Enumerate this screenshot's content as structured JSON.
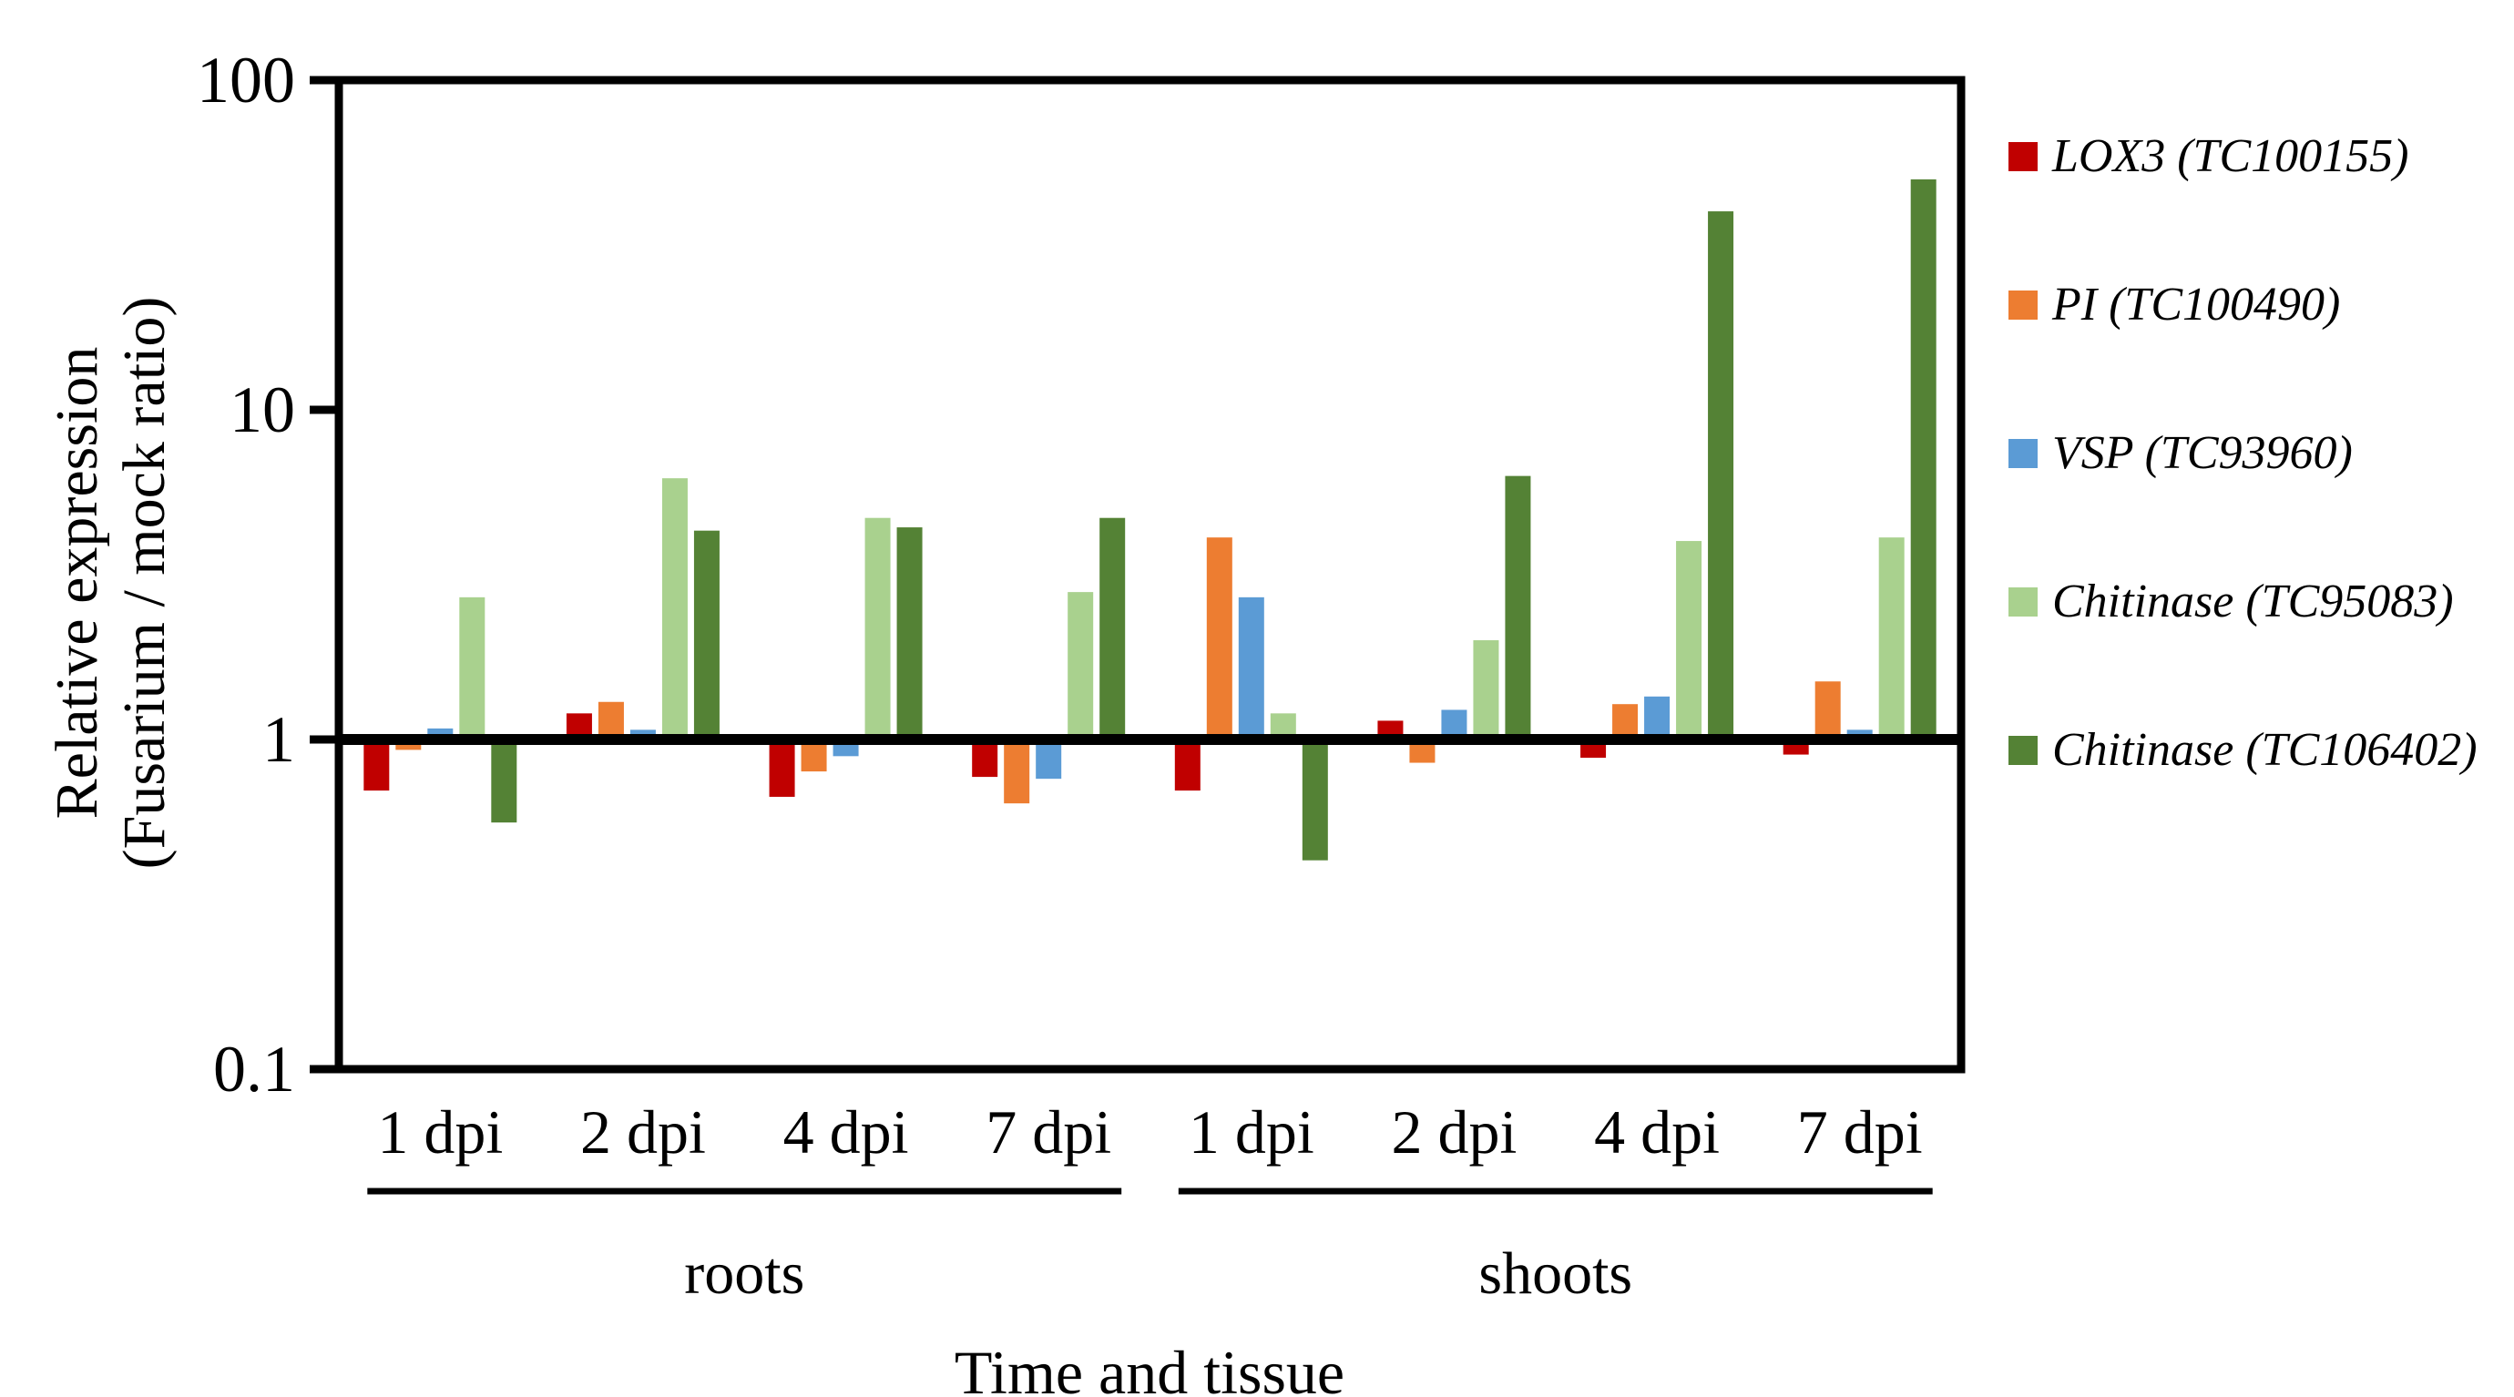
{
  "figure": {
    "y_axis": {
      "title_line1": "Relative expression",
      "title_line2": "(Fusarium / mock ratio)"
    },
    "x_axis": {
      "title": "Time and tissue"
    }
  },
  "chart_data": {
    "type": "bar",
    "y_scale": "log10",
    "ylim": [
      0.1,
      100
    ],
    "baseline": 1,
    "grid": false,
    "legend_position": "right",
    "y_ticks": [
      {
        "label": "100",
        "value": 100
      },
      {
        "label": "10",
        "value": 10
      },
      {
        "label": "1",
        "value": 1
      },
      {
        "label": "0.1",
        "value": 0.1
      }
    ],
    "categories": [
      "1 dpi",
      "2 dpi",
      "4 dpi",
      "7 dpi",
      "1 dpi",
      "2 dpi",
      "4 dpi",
      "7 dpi"
    ],
    "sections": [
      {
        "label": "roots",
        "from": 0,
        "to": 3
      },
      {
        "label": "shoots",
        "from": 4,
        "to": 7
      }
    ],
    "series": [
      {
        "name": "LOX3 (TC100155)",
        "color": "#C00000",
        "values": [
          0.7,
          1.2,
          0.67,
          0.77,
          0.7,
          1.14,
          0.88,
          0.9
        ]
      },
      {
        "name": "PI (TC100490)",
        "color": "#ED7D31",
        "values": [
          0.93,
          1.3,
          0.8,
          0.64,
          4.1,
          0.85,
          1.28,
          1.5
        ]
      },
      {
        "name": "VSP (TC93960)",
        "color": "#5B9BD5",
        "values": [
          1.08,
          1.07,
          0.89,
          0.76,
          2.7,
          1.23,
          1.35,
          1.07
        ]
      },
      {
        "name": "Chitinase (TC95083)",
        "color": "#A9D18E",
        "values": [
          2.7,
          6.2,
          4.7,
          2.8,
          1.2,
          2.0,
          4.0,
          4.1
        ]
      },
      {
        "name": "Chitinase (TC106402)",
        "color": "#548235",
        "values": [
          0.56,
          4.3,
          4.4,
          4.7,
          0.43,
          6.3,
          40.0,
          50.0
        ]
      }
    ]
  }
}
